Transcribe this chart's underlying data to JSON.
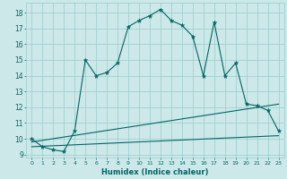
{
  "xlabel": "Humidex (Indice chaleur)",
  "bg_color": "#cce8e8",
  "grid_color": "#99cccc",
  "line_color": "#006666",
  "xlim": [
    -0.5,
    23.5
  ],
  "ylim": [
    8.8,
    18.6
  ],
  "xticks": [
    0,
    1,
    2,
    3,
    4,
    5,
    6,
    7,
    8,
    9,
    10,
    11,
    12,
    13,
    14,
    15,
    16,
    17,
    18,
    19,
    20,
    21,
    22,
    23
  ],
  "yticks": [
    9,
    10,
    11,
    12,
    13,
    14,
    15,
    16,
    17,
    18
  ],
  "line1_x": [
    0,
    1,
    2,
    3,
    4,
    5,
    6,
    7,
    8,
    9,
    10,
    11,
    12,
    13,
    14,
    15,
    16,
    17,
    18,
    19,
    20,
    21,
    22,
    23
  ],
  "line1_y": [
    10.0,
    9.5,
    9.3,
    9.2,
    10.5,
    15.0,
    14.0,
    14.2,
    14.8,
    17.1,
    17.5,
    17.8,
    18.2,
    17.5,
    17.2,
    16.5,
    14.0,
    17.4,
    14.0,
    14.8,
    12.2,
    12.1,
    11.8,
    10.5
  ],
  "line2_x": [
    0,
    23
  ],
  "line2_y": [
    9.8,
    12.2
  ],
  "line3_x": [
    0,
    23
  ],
  "line3_y": [
    9.5,
    10.2
  ]
}
